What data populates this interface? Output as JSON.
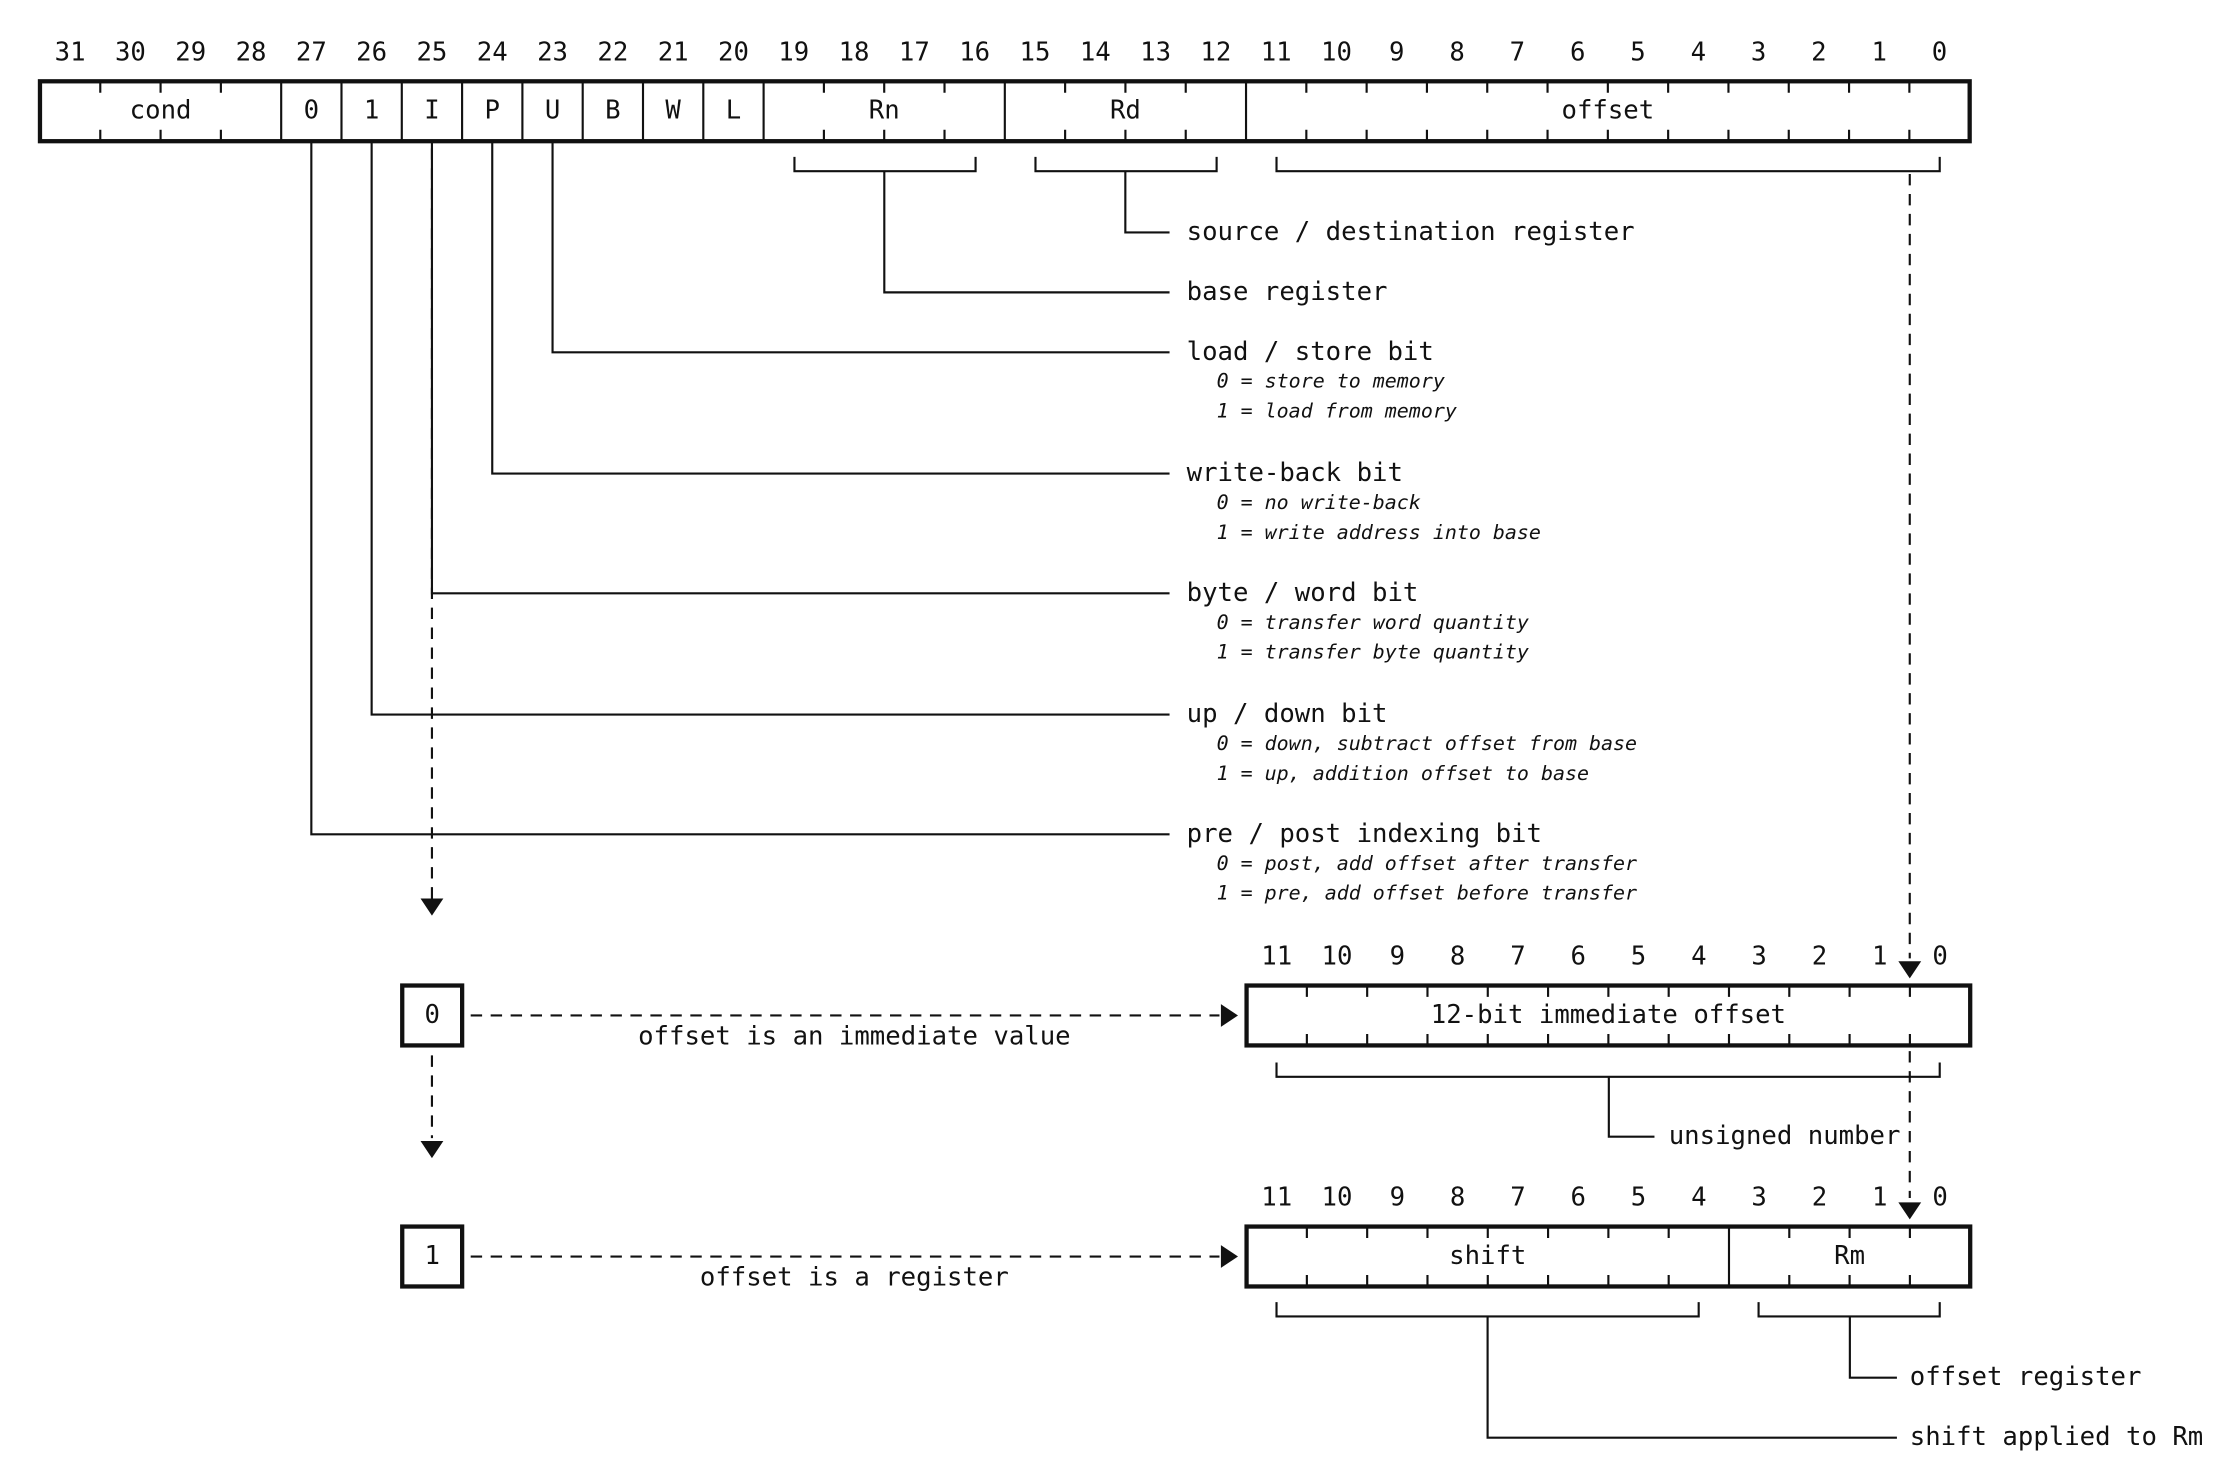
{
  "main": {
    "bit_numbers": [
      31,
      30,
      29,
      28,
      27,
      26,
      25,
      24,
      23,
      22,
      21,
      20,
      19,
      18,
      17,
      16,
      15,
      14,
      13,
      12,
      11,
      10,
      9,
      8,
      7,
      6,
      5,
      4,
      3,
      2,
      1,
      0
    ],
    "fields": [
      "cond",
      "0",
      "1",
      "I",
      "P",
      "U",
      "B",
      "W",
      "L",
      "Rn",
      "Rd",
      "offset"
    ],
    "annotations": [
      {
        "title": "source / destination register",
        "notes": []
      },
      {
        "title": "base register",
        "notes": []
      },
      {
        "title": "load / store bit",
        "notes": [
          "0 = store to memory",
          "1 = load from memory"
        ]
      },
      {
        "title": "write-back bit",
        "notes": [
          "0 = no write-back",
          "1 = write address into base"
        ]
      },
      {
        "title": "byte / word bit",
        "notes": [
          "0 = transfer word quantity",
          "1 = transfer byte quantity"
        ]
      },
      {
        "title": "up / down bit",
        "notes": [
          "0 = down, subtract offset from base",
          "1 = up, addition offset to base"
        ]
      },
      {
        "title": "pre / post indexing bit",
        "notes": [
          "0 = post, add offset after transfer",
          "1 = pre, add offset before transfer"
        ]
      }
    ]
  },
  "immediate": {
    "flag": "0",
    "label": "offset is an immediate value",
    "bit_numbers": [
      11,
      10,
      9,
      8,
      7,
      6,
      5,
      4,
      3,
      2,
      1,
      0
    ],
    "fields": [
      "12-bit immediate offset"
    ],
    "annotations": [
      "unsigned number"
    ]
  },
  "register": {
    "flag": "1",
    "label": "offset is a register",
    "bit_numbers": [
      11,
      10,
      9,
      8,
      7,
      6,
      5,
      4,
      3,
      2,
      1,
      0
    ],
    "fields": [
      "shift",
      "Rm"
    ],
    "annotations": [
      "offset register",
      "shift applied to Rm"
    ]
  }
}
